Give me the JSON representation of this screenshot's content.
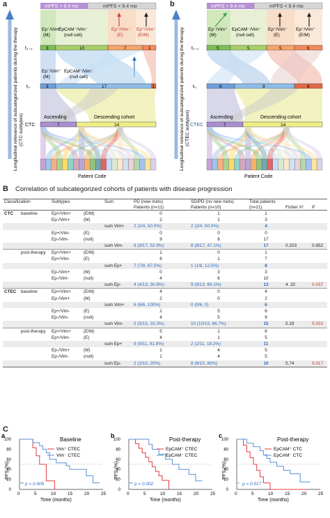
{
  "panel_a": {
    "letter": "a",
    "mpfs_left": "mPFS > 9.4 mo",
    "mpfs_right": "mPFS < 9.4 mo",
    "ylabel": "Longitudinal relevance of subcategorized patients during the therapy",
    "ylabel2": "(CTC subtypes)",
    "cat_ep_vim_m": "Ep⁻/Vim⁺",
    "cat_m": "(M)",
    "cat_null": "EpCAM⁻/Vim⁻",
    "cat_null_sub": "(null cell)",
    "cat_e": "Ep⁺/Vim⁻",
    "cat_e_sub": "(E)",
    "cat_em": "Ep⁺/Vim⁺",
    "cat_em_sub": "(E/M)",
    "t12": "t₁₋₂",
    "t0": "t₀",
    "t12_counts": [
      "3",
      "10",
      "7",
      "1"
    ],
    "t0_m": "Ep⁻/Vim⁺",
    "t0_m_sub": "(M)",
    "t0_null": "EpCAM⁻/Vim⁻",
    "t0_null_sub": "(null cell)",
    "t0_counts": [
      "3",
      "17",
      "1"
    ],
    "ascending": "Ascending",
    "descending": "Descending cohort",
    "ctc_label": "CTC",
    "ctc_counts": [
      "7",
      "14"
    ],
    "patient_code": "Patient Code"
  },
  "panel_b_top": {
    "letter": "b",
    "mpfs_left": "mPFS > 9.4 mo",
    "mpfs_right": "mPFS < 9.4 mo",
    "ylabel": "Longitudinal relevance of subcategorized patients during the therapy",
    "ylabel2": "(CTEC subtypes)",
    "cat_m": "Ep⁻/Vim⁺",
    "cat_m_sub": "(M)",
    "cat_null": "EpCAM⁻/Vim⁻",
    "cat_null_sub": "(null cell)",
    "cat_e": "Ep⁺/Vim⁻",
    "cat_e_sub": "(E)",
    "cat_em": "Ep⁺/Vim⁺",
    "cat_em_sub": "(E/M)",
    "t12": "t₁₋₂",
    "t0": "t₀",
    "t12_counts": [
      "5",
      "5",
      "5",
      "6"
    ],
    "t0_counts": [
      "6",
      "9",
      "6"
    ],
    "ascending": "Ascending",
    "descending": "Descending cohort",
    "ctec_label": "CTEC",
    "ctec_counts": [
      "7",
      "14"
    ],
    "patient_code": "Patient Code"
  },
  "section_b": {
    "letter": "B",
    "title": "Correlation of subcategorized cohorts of patients with disease progression",
    "headers": {
      "classification": "Classification",
      "subtypes": "Subtypes",
      "sum": "Sum",
      "pd": "PD (new mets)",
      "pd2": "Patients (n=11)",
      "sd": "SD/PD (no new mets)",
      "sd2": "Patients (n=10)",
      "total": "Total patients",
      "total2": "(n=21)",
      "fisher": "Fisher X²",
      "p": "P"
    },
    "rows": [
      {
        "cls": "CTC",
        "tp": "baseline",
        "sub": "Ep+/Vim+",
        "cat": "(E/M)",
        "sum": "",
        "pd": "0",
        "sd": "1",
        "tot": "1",
        "fx": "",
        "p": "",
        "shade": false,
        "sep": true
      },
      {
        "cls": "",
        "tp": "",
        "sub": "Ep-/Vim+",
        "cat": "(M)",
        "sum": "",
        "pd": "2",
        "sd": "1",
        "tot": "3",
        "fx": "",
        "p": "",
        "shade": false
      },
      {
        "cls": "",
        "tp": "",
        "sub": "",
        "cat": "",
        "sum": "sum Vim+",
        "pd": "2 (2/4, 50.0%)",
        "sd": "2 (2/4, 50.0%)",
        "tot": "4",
        "fx": "",
        "p": "",
        "shade": true,
        "blue": true
      },
      {
        "cls": "",
        "tp": "",
        "sub": "Ep+/Vim-",
        "cat": "(E)",
        "sum": "",
        "pd": "0",
        "sd": "0",
        "tot": "0",
        "fx": "",
        "p": "",
        "shade": false
      },
      {
        "cls": "",
        "tp": "",
        "sub": "Ep-/Vim-",
        "cat": "(null)",
        "sum": "",
        "pd": "9",
        "sd": "8",
        "tot": "17",
        "fx": "",
        "p": "",
        "shade": false
      },
      {
        "cls": "",
        "tp": "",
        "sub": "",
        "cat": "",
        "sum": "sum Vim-",
        "pd": "9 (9/17, 52.9%)",
        "sd": "8 (8/17, 47.1%)",
        "tot": "17",
        "fx": "0.203",
        "p": "0.652",
        "shade": true,
        "blue": true
      },
      {
        "cls": "",
        "tp": "post-therapy",
        "sub": "Ep+/Vim+",
        "cat": "(E/M)",
        "sum": "",
        "pd": "1",
        "sd": "0",
        "tot": "1",
        "fx": "",
        "p": "",
        "shade": false,
        "sep": true
      },
      {
        "cls": "",
        "tp": "",
        "sub": "Ep+/Vim-",
        "cat": "(E)",
        "sum": "",
        "pd": "6",
        "sd": "1",
        "tot": "7",
        "fx": "",
        "p": "",
        "shade": false
      },
      {
        "cls": "",
        "tp": "",
        "sub": "",
        "cat": "",
        "sum": "sum Ep+",
        "pd": "7 (7/8, 87.5%)",
        "sd": "1 (1/8, 12.5%)",
        "tot": "8",
        "fx": "",
        "p": "",
        "shade": true,
        "blue": true
      },
      {
        "cls": "",
        "tp": "",
        "sub": "Ep-/Vim+",
        "cat": "(M)",
        "sum": "",
        "pd": "0",
        "sd": "3",
        "tot": "3",
        "fx": "",
        "p": "",
        "shade": false
      },
      {
        "cls": "",
        "tp": "",
        "sub": "Ep-/Vim-",
        "cat": "(null)",
        "sum": "",
        "pd": "4",
        "sd": "6",
        "tot": "10",
        "fx": "",
        "p": "",
        "shade": false
      },
      {
        "cls": "",
        "tp": "",
        "sub": "",
        "cat": "",
        "sum": "sum Ep-",
        "pd": "4 (4/13, 30.8%)",
        "sd": "9 (9/13, 69.2%)",
        "tot": "13",
        "fx": "4 .32",
        "p": "0.037",
        "shade": true,
        "blue": true,
        "red": true
      },
      {
        "cls": "CTEC",
        "tp": "baseline",
        "sub": "Ep+/Vim+",
        "cat": "(E/M)",
        "sum": "",
        "pd": "4",
        "sd": "0",
        "tot": "4",
        "fx": "",
        "p": "",
        "shade": false,
        "sep": true
      },
      {
        "cls": "",
        "tp": "",
        "sub": "Ep-/Vim+",
        "cat": "(M)",
        "sum": "",
        "pd": "2",
        "sd": "0",
        "tot": "2",
        "fx": "",
        "p": "",
        "shade": false
      },
      {
        "cls": "",
        "tp": "",
        "sub": "",
        "cat": "",
        "sum": "sum Vim+",
        "pd": "6 (6/6, 100%)",
        "sd": "0 (0/6, 0)",
        "tot": "6",
        "fx": "",
        "p": "",
        "shade": true,
        "blue": true
      },
      {
        "cls": "",
        "tp": "",
        "sub": "Ep+/Vim-",
        "cat": "(E)",
        "sum": "",
        "pd": "1",
        "sd": "5",
        "tot": "6",
        "fx": "",
        "p": "",
        "shade": false
      },
      {
        "cls": "",
        "tp": "",
        "sub": "Ep-/Vim-",
        "cat": "(null)",
        "sum": "",
        "pd": "4",
        "sd": "5",
        "tot": "9",
        "fx": "",
        "p": "",
        "shade": false
      },
      {
        "cls": "",
        "tp": "",
        "sub": "",
        "cat": "",
        "sum": "sum Vim-",
        "pd": "5 (5/15, 33.3%)",
        "sd": "10 (10/15, 66.7%)",
        "tot": "15",
        "fx": "5.19",
        "p": "0.023",
        "shade": true,
        "blue": true,
        "red": true
      },
      {
        "cls": "",
        "tp": "post-therapy",
        "sub": "Ep+/Vim+",
        "cat": "(E/M)",
        "sum": "",
        "pd": "5",
        "sd": "1",
        "tot": "6",
        "fx": "",
        "p": "",
        "shade": false,
        "sep": true
      },
      {
        "cls": "",
        "tp": "",
        "sub": "Ep+/Vim-",
        "cat": "(E)",
        "sum": "",
        "pd": "4",
        "sd": "1",
        "tot": "5",
        "fx": "",
        "p": "",
        "shade": false
      },
      {
        "cls": "",
        "tp": "",
        "sub": "",
        "cat": "",
        "sum": "sum Ep+",
        "pd": "9 (9/11, 81.8%)",
        "sd": "2 (2/11, 18.2%)",
        "tot": "11",
        "fx": "",
        "p": "",
        "shade": true,
        "blue": true
      },
      {
        "cls": "",
        "tp": "",
        "sub": "Ep-/Vim+",
        "cat": "(M)",
        "sum": "",
        "pd": "1",
        "sd": "4",
        "tot": "5",
        "fx": "",
        "p": "",
        "shade": false
      },
      {
        "cls": "",
        "tp": "",
        "sub": "Ep-/Vim-",
        "cat": "(null)",
        "sum": "",
        "pd": "1",
        "sd": "4",
        "tot": "5",
        "fx": "",
        "p": "",
        "shade": false
      },
      {
        "cls": "",
        "tp": "",
        "sub": "",
        "cat": "",
        "sum": "sum Ep-",
        "pd": "2 (2/10, 20%)",
        "sd": "8 (8/10, 80%)",
        "tot": "10",
        "fx": "5.74",
        "p": "0.017",
        "shade": true,
        "blue": true,
        "red": true,
        "bottom": true
      }
    ]
  },
  "section_c": {
    "letter": "C",
    "plots": [
      {
        "letter": "a",
        "title": "Baseline",
        "legend1": "Vim⁺ CTEC",
        "legend2": "Vim⁻ CTEC",
        "pval": "p = 0.009",
        "stars": "**",
        "ylabel": "PFS (%)",
        "xlabel": "Time (months)"
      },
      {
        "letter": "b",
        "title": "Post-therapy",
        "legend1": "EpCAM⁺ CTEC",
        "legend2": "EpCAM⁻ CTEC",
        "pval": "p = 0.002",
        "stars": "**",
        "ylabel": "PFS (%)",
        "xlabel": "Time (months)"
      },
      {
        "letter": "c",
        "title": "Post-therapy",
        "legend1": "EpCAM⁺ CTC",
        "legend2": "EpCAM⁻ CTC",
        "pval": "p = 0.017",
        "stars": "*",
        "ylabel": "PFS (%)",
        "xlabel": "Time (months)"
      }
    ],
    "xticks": [
      "0",
      "5",
      "10",
      "15",
      "20",
      "25"
    ],
    "yticks": [
      "0",
      "20",
      "40",
      "60",
      "80",
      "100"
    ]
  },
  "colors": {
    "red": "#e0393e",
    "blue": "#5b8fd6",
    "pval": "#2a6bc4",
    "median": "#999999"
  },
  "chart_data": [
    {
      "type": "line",
      "title": "Baseline",
      "xlabel": "Time (months)",
      "ylabel": "PFS (%)",
      "xlim": [
        0,
        25
      ],
      "ylim": [
        0,
        100
      ],
      "series": [
        {
          "name": "Vim⁺ CTEC",
          "x": [
            0,
            4,
            4,
            5,
            5,
            6,
            6,
            8,
            8,
            10.5,
            10.5
          ],
          "y": [
            100,
            100,
            83,
            83,
            67,
            67,
            50,
            50,
            17,
            17,
            0
          ]
        },
        {
          "name": "Vim⁻ CTEC",
          "x": [
            0,
            4,
            4,
            6,
            6,
            7,
            7,
            8,
            8,
            9,
            9,
            11,
            11,
            14,
            14,
            15,
            15,
            20,
            20,
            22,
            22,
            24
          ],
          "y": [
            100,
            100,
            93,
            93,
            87,
            87,
            80,
            80,
            73,
            73,
            60,
            60,
            53,
            53,
            47,
            47,
            40,
            40,
            27,
            27,
            13,
            13
          ]
        }
      ]
    },
    {
      "type": "line",
      "title": "Post-therapy",
      "xlabel": "Time (months)",
      "ylabel": "PFS (%)",
      "xlim": [
        0,
        25
      ],
      "ylim": [
        0,
        100
      ],
      "series": [
        {
          "name": "EpCAM⁺ CTEC",
          "x": [
            0,
            2,
            2,
            3,
            3,
            4,
            4,
            5,
            5,
            6,
            6,
            7,
            7,
            8,
            8,
            9,
            9,
            10,
            10,
            12,
            12
          ],
          "y": [
            100,
            100,
            91,
            91,
            82,
            82,
            73,
            73,
            64,
            64,
            55,
            55,
            45,
            45,
            36,
            36,
            27,
            27,
            18,
            18,
            0
          ]
        },
        {
          "name": "EpCAM⁻ CTEC",
          "x": [
            0,
            6,
            6,
            7,
            7,
            9,
            9,
            11,
            11,
            13,
            13,
            15,
            15,
            18,
            18,
            20,
            20,
            22
          ],
          "y": [
            100,
            100,
            90,
            90,
            80,
            80,
            70,
            70,
            60,
            60,
            50,
            50,
            40,
            40,
            30,
            30,
            17,
            17
          ]
        }
      ]
    },
    {
      "type": "line",
      "title": "Post-therapy",
      "xlabel": "Time (months)",
      "ylabel": "PFS (%)",
      "xlim": [
        0,
        25
      ],
      "ylim": [
        0,
        100
      ],
      "series": [
        {
          "name": "EpCAM⁺ CTC",
          "x": [
            0,
            2,
            2,
            3,
            3,
            4,
            4,
            5,
            5,
            6,
            6,
            7,
            7,
            8,
            8,
            10,
            10,
            21
          ],
          "y": [
            100,
            100,
            88,
            88,
            75,
            75,
            63,
            63,
            50,
            50,
            38,
            38,
            25,
            25,
            13,
            13,
            0,
            0
          ]
        },
        {
          "name": "EpCAM⁻ CTC",
          "x": [
            0,
            3,
            3,
            5,
            5,
            7,
            7,
            8,
            8,
            9,
            9,
            10,
            10,
            12,
            12,
            14,
            14,
            16,
            16,
            19,
            19,
            22
          ],
          "y": [
            100,
            100,
            92,
            92,
            85,
            85,
            77,
            77,
            69,
            69,
            62,
            62,
            54,
            54,
            46,
            46,
            38,
            38,
            31,
            31,
            15,
            15
          ]
        }
      ]
    }
  ]
}
